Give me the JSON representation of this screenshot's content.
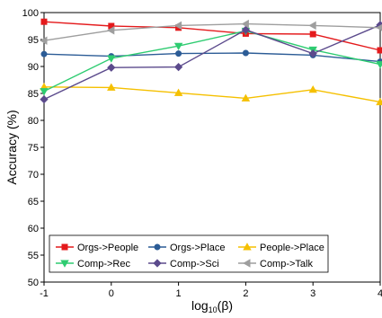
{
  "chart_data": {
    "type": "line",
    "xlabel": "log",
    "xlabel_subscript": "10",
    "xlabel_suffix": "(β)",
    "ylabel": "Accuracy (%)",
    "xlim": [
      -1,
      4
    ],
    "ylim": [
      50,
      100
    ],
    "x_ticks": [
      -1,
      0,
      1,
      2,
      3,
      4
    ],
    "y_ticks": [
      50,
      55,
      60,
      65,
      70,
      75,
      80,
      85,
      90,
      95,
      100
    ],
    "grid": false,
    "legend_position": "bottom-left",
    "x": [
      -1,
      0,
      1,
      2,
      3,
      4
    ],
    "series": [
      {
        "name": "Orgs->People",
        "color": "#e41a1c",
        "marker": "square",
        "values": [
          98.3,
          97.5,
          97.2,
          96.1,
          96.0,
          93.0
        ]
      },
      {
        "name": "Orgs->Place",
        "color": "#2c5c96",
        "marker": "circle",
        "values": [
          92.3,
          91.9,
          92.4,
          92.5,
          92.1,
          90.9
        ]
      },
      {
        "name": "People->Place",
        "color": "#f5c000",
        "marker": "triangle-up",
        "values": [
          86.2,
          86.1,
          85.1,
          84.1,
          85.7,
          83.4
        ]
      },
      {
        "name": "Comp->Rec",
        "color": "#2ecc71",
        "marker": "triangle-down",
        "values": [
          85.4,
          91.5,
          93.8,
          96.6,
          93.1,
          90.4
        ]
      },
      {
        "name": "Comp->Sci",
        "color": "#5b4a8c",
        "marker": "diamond",
        "values": [
          83.9,
          89.8,
          89.9,
          96.8,
          92.4,
          97.7
        ]
      },
      {
        "name": "Comp->Talk",
        "color": "#9e9e9e",
        "marker": "triangle-left",
        "values": [
          94.8,
          96.7,
          97.6,
          97.9,
          97.6,
          97.2
        ]
      }
    ]
  }
}
